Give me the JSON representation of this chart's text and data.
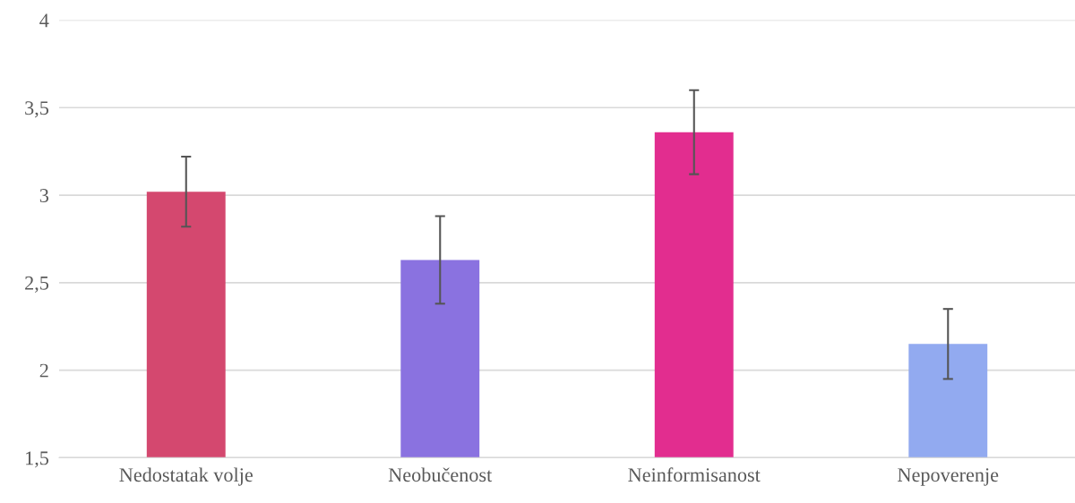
{
  "chart_data": {
    "type": "bar",
    "categories": [
      "Nedostatak volje",
      "Neobučenost",
      "Neinformisanost",
      "Nepoverenje"
    ],
    "values": [
      3.02,
      2.63,
      3.36,
      2.15
    ],
    "errors": [
      0.2,
      0.25,
      0.24,
      0.2
    ],
    "colors": [
      "#d4486f",
      "#8a72e0",
      "#e22d8f",
      "#92aaf0"
    ],
    "ylim": [
      1.5,
      4
    ],
    "yticks": [
      {
        "value": 1.5,
        "label": "1,5"
      },
      {
        "value": 2,
        "label": "2"
      },
      {
        "value": 2.5,
        "label": "2,5"
      },
      {
        "value": 3,
        "label": "3"
      },
      {
        "value": 3.5,
        "label": "3,5"
      },
      {
        "value": 4,
        "label": "4"
      }
    ],
    "grid": "y"
  }
}
